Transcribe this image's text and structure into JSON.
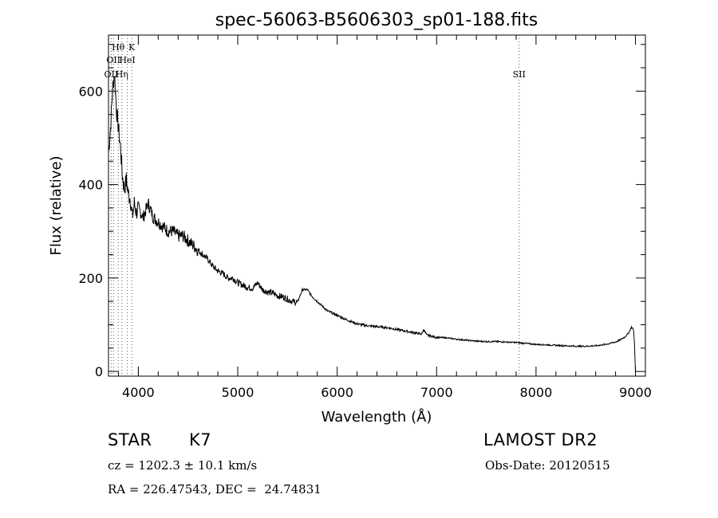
{
  "chart_data": {
    "type": "line",
    "title": "spec-56063-B5606303_sp01-188.fits",
    "xlabel": "Wavelength (Å)",
    "ylabel": "Flux (relative)",
    "xlim": [
      3700,
      9100
    ],
    "ylim": [
      -10,
      720
    ],
    "x_ticks": [
      4000,
      5000,
      6000,
      7000,
      8000,
      9000
    ],
    "y_ticks": [
      0,
      200,
      400,
      600
    ],
    "grid": false,
    "series": [
      {
        "x": [
          3700,
          3720,
          3740,
          3760,
          3780,
          3800,
          3820,
          3840,
          3860,
          3880,
          3900,
          3920,
          3940,
          3960,
          3980,
          4000,
          4050,
          4100,
          4150,
          4200,
          4250,
          4300,
          4350,
          4400,
          4450,
          4500,
          4550,
          4600,
          4650,
          4700,
          4750,
          4800,
          4850,
          4900,
          4950,
          5000,
          5050,
          5100,
          5150,
          5200,
          5250,
          5300,
          5350,
          5400,
          5450,
          5500,
          5550,
          5600,
          5650,
          5700,
          5750,
          5800,
          5850,
          5900,
          6000,
          6100,
          6200,
          6300,
          6400,
          6500,
          6600,
          6700,
          6800,
          6850,
          6870,
          6900,
          7000,
          7100,
          7200,
          7300,
          7400,
          7500,
          7600,
          7700,
          7800,
          7900,
          8000,
          8100,
          8200,
          8300,
          8400,
          8500,
          8600,
          8700,
          8800,
          8850,
          8900,
          8930,
          8960,
          8980,
          8990,
          9000
        ],
        "y": [
          470,
          520,
          600,
          640,
          560,
          520,
          480,
          420,
          390,
          410,
          380,
          370,
          330,
          360,
          340,
          350,
          330,
          360,
          330,
          320,
          310,
          300,
          300,
          290,
          290,
          280,
          270,
          260,
          250,
          240,
          225,
          215,
          210,
          200,
          200,
          190,
          185,
          180,
          178,
          190,
          175,
          170,
          168,
          162,
          160,
          155,
          150,
          148,
          175,
          175,
          160,
          150,
          140,
          130,
          120,
          110,
          102,
          98,
          96,
          94,
          90,
          86,
          82,
          80,
          90,
          78,
          73,
          72,
          69,
          67,
          65,
          64,
          64,
          63,
          62,
          60,
          58,
          57,
          56,
          55,
          54,
          54,
          55,
          58,
          63,
          68,
          75,
          82,
          95,
          90,
          60,
          0
        ]
      }
    ],
    "line_markers": [
      {
        "x": 3727,
        "label": "OII",
        "row": 3
      },
      {
        "x": 3750,
        "label": "OII",
        "row": 2
      },
      {
        "x": 3798,
        "label": "Hθ",
        "row": 1
      },
      {
        "x": 3835,
        "label": "Hη",
        "row": 3
      },
      {
        "x": 3889,
        "label": "HeI",
        "row": 2
      },
      {
        "x": 3934,
        "label": "K",
        "row": 1
      },
      {
        "x": 7830,
        "label": "SII",
        "row": 3
      }
    ]
  },
  "info": {
    "object_class": "STAR",
    "subclass": "K7",
    "survey": "LAMOST DR2",
    "cz": "cz = 1202.3 ± 10.1 km/s",
    "obs_date": "Obs-Date: 20120515",
    "coords": "RA = 226.47543, DEC =  24.74831"
  }
}
